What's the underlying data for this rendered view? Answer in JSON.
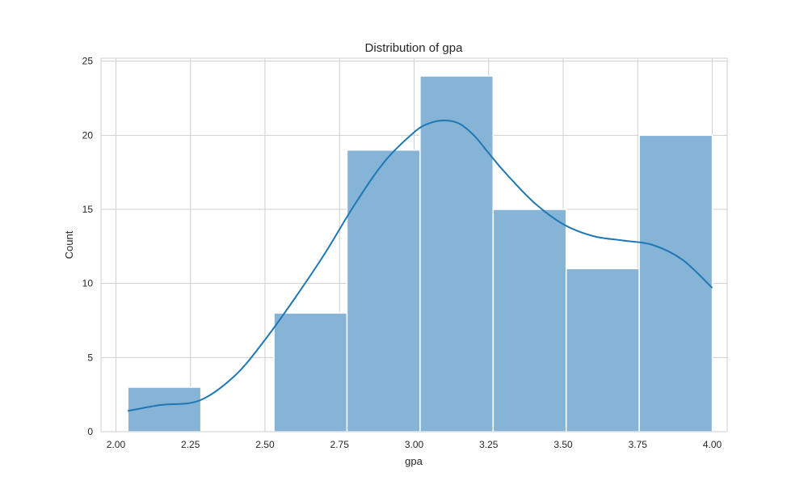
{
  "chart_data": {
    "type": "bar",
    "title": "Distribution of gpa",
    "xlabel": "gpa",
    "ylabel": "Count",
    "xlim": [
      1.95,
      4.05
    ],
    "ylim": [
      0,
      25.2
    ],
    "xticks": [
      2.0,
      2.25,
      2.5,
      2.75,
      3.0,
      3.25,
      3.5,
      3.75,
      4.0
    ],
    "xtick_labels": [
      "2.00",
      "2.25",
      "2.50",
      "2.75",
      "3.00",
      "3.25",
      "3.50",
      "3.75",
      "4.00"
    ],
    "yticks": [
      0,
      5,
      10,
      15,
      20,
      25
    ],
    "ytick_labels": [
      "0",
      "5",
      "10",
      "15",
      "20",
      "25"
    ],
    "grid": true,
    "bins": [
      {
        "start": 2.04,
        "end": 2.285,
        "count": 3
      },
      {
        "start": 2.285,
        "end": 2.53,
        "count": 0
      },
      {
        "start": 2.53,
        "end": 2.775,
        "count": 8
      },
      {
        "start": 2.775,
        "end": 3.02,
        "count": 19
      },
      {
        "start": 3.02,
        "end": 3.265,
        "count": 24
      },
      {
        "start": 3.265,
        "end": 3.51,
        "count": 15
      },
      {
        "start": 3.51,
        "end": 3.755,
        "count": 11
      },
      {
        "start": 3.755,
        "end": 4.0,
        "count": 20
      }
    ],
    "kde": {
      "x": [
        2.04,
        2.15,
        2.28,
        2.4,
        2.5,
        2.6,
        2.7,
        2.8,
        2.9,
        3.0,
        3.05,
        3.1,
        3.15,
        3.2,
        3.25,
        3.3,
        3.4,
        3.5,
        3.6,
        3.7,
        3.8,
        3.9,
        4.0
      ],
      "y": [
        1.4,
        1.8,
        2.1,
        3.8,
        6.2,
        9.0,
        12.0,
        15.3,
        18.2,
        20.2,
        20.8,
        21.0,
        20.8,
        20.0,
        18.8,
        17.6,
        15.5,
        14.0,
        13.2,
        12.9,
        12.6,
        11.6,
        9.7
      ]
    },
    "colors": {
      "bar_fill": "#86b4d7",
      "kde_line": "#1f77b4"
    }
  }
}
